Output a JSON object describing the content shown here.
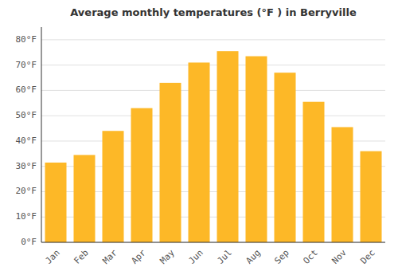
{
  "chart_data": {
    "type": "bar",
    "title": "Average monthly temperatures (°F ) in Berryville",
    "categories": [
      "Jan",
      "Feb",
      "Mar",
      "Apr",
      "May",
      "Jun",
      "Jul",
      "Aug",
      "Sep",
      "Oct",
      "Nov",
      "Dec"
    ],
    "values": [
      31.5,
      34.5,
      44.0,
      53.0,
      63.0,
      71.0,
      75.5,
      73.5,
      67.0,
      55.5,
      45.5,
      36.0
    ],
    "color": "#FDB827",
    "ylim": [
      0,
      85
    ],
    "yticks": [
      {
        "value": 0,
        "label": "0°F"
      },
      {
        "value": 10,
        "label": "10°F"
      },
      {
        "value": 20,
        "label": "20°F"
      },
      {
        "value": 30,
        "label": "30°F"
      },
      {
        "value": 40,
        "label": "40°F"
      },
      {
        "value": 50,
        "label": "50°F"
      },
      {
        "value": 60,
        "label": "60°F"
      },
      {
        "value": 70,
        "label": "70°F"
      },
      {
        "value": 80,
        "label": "80°F"
      }
    ],
    "grid": true
  }
}
